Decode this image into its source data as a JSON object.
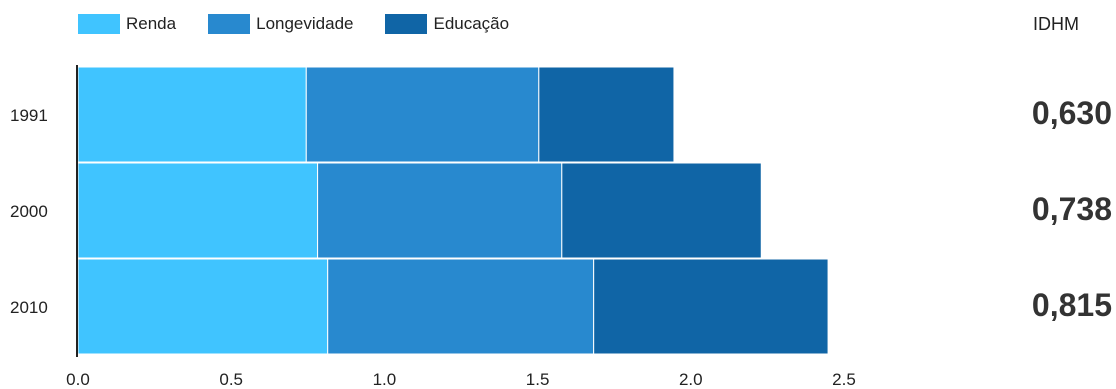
{
  "legend": {
    "items": [
      {
        "label": "Renda",
        "color": "#40c4ff"
      },
      {
        "label": "Longevidade",
        "color": "#2889cf"
      },
      {
        "label": "Educação",
        "color": "#1065a6"
      }
    ]
  },
  "idhm": {
    "title": "IDHM",
    "values": [
      "0,630",
      "0,738",
      "0,815"
    ]
  },
  "chart_data": {
    "type": "bar",
    "orientation": "horizontal",
    "stacked": true,
    "categories": [
      "1991",
      "2000",
      "2010"
    ],
    "series": [
      {
        "name": "Renda",
        "color": "#40c4ff",
        "values": [
          0.745,
          0.782,
          0.815
        ]
      },
      {
        "name": "Longevidade",
        "color": "#2889cf",
        "values": [
          0.759,
          0.797,
          0.868
        ]
      },
      {
        "name": "Educação",
        "color": "#1065a6",
        "values": [
          0.441,
          0.651,
          0.765
        ]
      }
    ],
    "xlim": [
      0,
      2.5
    ],
    "xticks": [
      "0.0",
      "0.5",
      "1.0",
      "1.5",
      "2.0",
      "2.5"
    ],
    "grid": false,
    "legend_position": "top-left"
  }
}
